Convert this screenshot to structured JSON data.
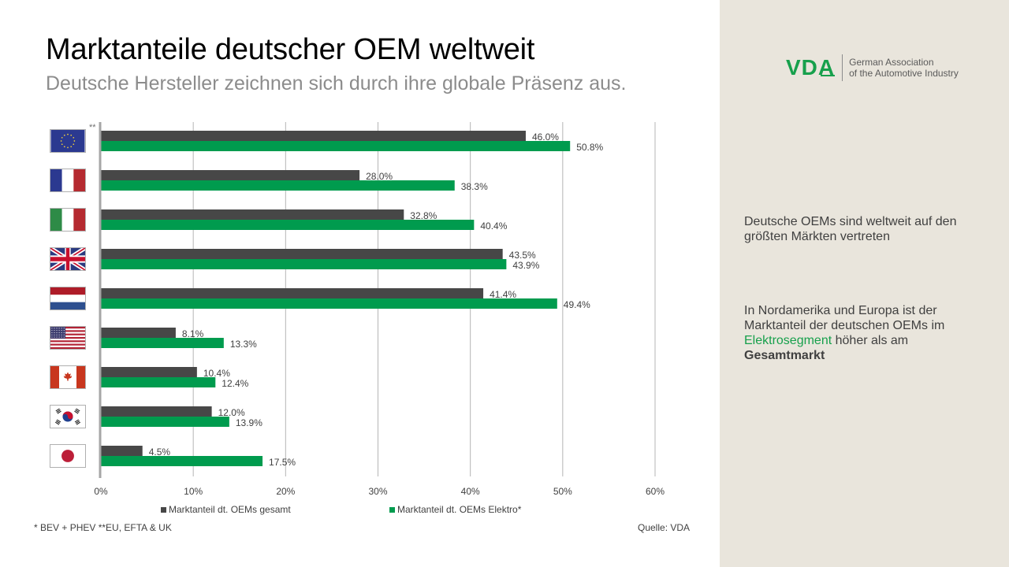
{
  "header": {
    "title": "Marktanteile deutscher OEM weltweit",
    "subtitle": "Deutsche Hersteller zeichnen sich durch ihre globale Präsenz aus."
  },
  "logo": {
    "mark": "VDA",
    "line1": "German Association",
    "line2": "of the Automotive Industry"
  },
  "side_panel": {
    "text1": "Deutsche OEMs sind weltweit auf den größten Märkten vertreten",
    "text2_part1": "In Nordamerika und Europa ist der Marktanteil der deutschen OEMs im ",
    "text2_highlight": "Elektrosegment",
    "text2_part2": " höher als am ",
    "text2_bold": "Gesamtmarkt"
  },
  "colors": {
    "gesamt": "#474747",
    "elektro": "#009b4e",
    "accent_green": "#17a04c",
    "panel_bg": "#e9e5dc"
  },
  "eu_note": "**",
  "footnote": "* BEV + PHEV **EU, EFTA & UK",
  "source": "Quelle: VDA",
  "chart_data": {
    "type": "bar",
    "orientation": "horizontal",
    "title": "Marktanteile deutscher OEM weltweit",
    "categories": [
      "EU",
      "France",
      "Italy",
      "United Kingdom",
      "Netherlands",
      "USA",
      "Canada",
      "South Korea",
      "Japan"
    ],
    "category_icons": [
      "flag-eu",
      "flag-france",
      "flag-italy",
      "flag-uk",
      "flag-netherlands",
      "flag-usa",
      "flag-canada",
      "flag-south-korea",
      "flag-japan"
    ],
    "series": [
      {
        "name": "Marktanteil dt. OEMs gesamt",
        "values": [
          46.0,
          28.0,
          32.8,
          43.5,
          41.4,
          8.1,
          10.4,
          12.0,
          4.5
        ],
        "labels": [
          "46.0%",
          "28.0%",
          "32.8%",
          "43.5%",
          "41.4%",
          "8.1%",
          "10.4%",
          "12.0%",
          "4.5%"
        ]
      },
      {
        "name": "Marktanteil dt. OEMs Elektro*",
        "values": [
          50.8,
          38.3,
          40.4,
          43.9,
          49.4,
          13.3,
          12.4,
          13.9,
          17.5
        ],
        "labels": [
          "50.8%",
          "38.3%",
          "40.4%",
          "43.9%",
          "49.4%",
          "13.3%",
          "12.4%",
          "13.9%",
          "17.5%"
        ]
      }
    ],
    "xlim": [
      0,
      60
    ],
    "xticks": [
      0,
      10,
      20,
      30,
      40,
      50,
      60
    ],
    "xtick_labels": [
      "0%",
      "10%",
      "20%",
      "30%",
      "40%",
      "50%",
      "60%"
    ],
    "xlabel": "",
    "ylabel": "",
    "grid": true,
    "legend_position": "bottom"
  }
}
